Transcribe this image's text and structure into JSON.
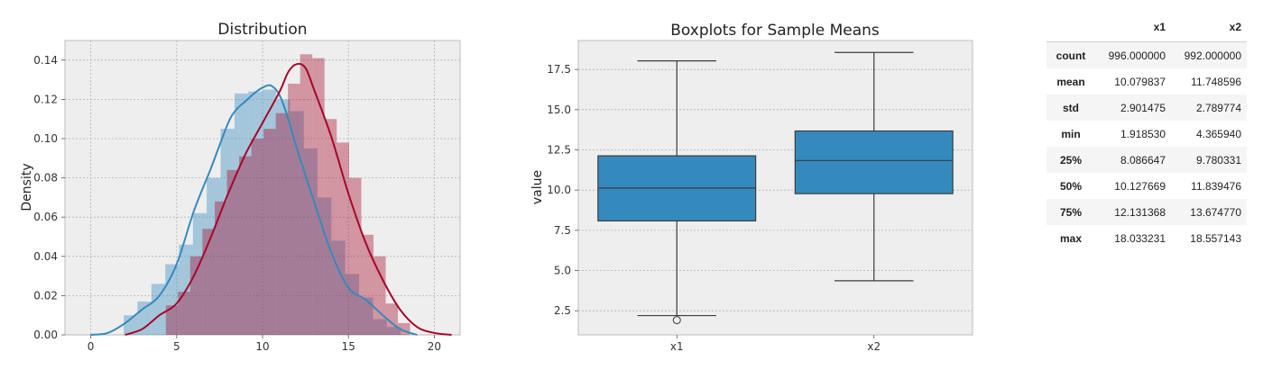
{
  "chart_data": [
    {
      "type": "histogram",
      "title": "Distribution",
      "xlabel": "",
      "ylabel": "Density",
      "xlim": [
        -1.5,
        21.5
      ],
      "ylim": [
        0,
        0.15
      ],
      "xticks": [
        0,
        5,
        10,
        15,
        20
      ],
      "yticks": [
        0.0,
        0.02,
        0.04,
        0.06,
        0.08,
        0.1,
        0.12,
        0.14
      ],
      "ytick_labels": [
        "0.00",
        "0.02",
        "0.04",
        "0.06",
        "0.08",
        "0.10",
        "0.12",
        "0.14"
      ],
      "grid": true,
      "series": [
        {
          "color": "#348abd",
          "bin_edges": [
            1.92,
            2.72,
            3.53,
            4.34,
            5.14,
            5.95,
            6.75,
            7.56,
            8.37,
            9.17,
            9.98,
            10.78,
            11.59,
            12.4,
            13.2,
            14.01,
            14.81,
            15.62,
            16.43,
            17.23,
            18.04
          ],
          "density": [
            0.01,
            0.017,
            0.026,
            0.036,
            0.046,
            0.062,
            0.08,
            0.105,
            0.123,
            0.124,
            0.125,
            0.12,
            0.114,
            0.095,
            0.07,
            0.048,
            0.031,
            0.019,
            0.008,
            0.004
          ],
          "kde_x": [
            0.0,
            1.0,
            2.0,
            3.0,
            4.0,
            5.0,
            6.0,
            7.0,
            8.0,
            8.5,
            9.0,
            9.5,
            10.0,
            10.5,
            11.0,
            11.5,
            12.0,
            13.0,
            14.0,
            15.0,
            16.0,
            17.0,
            18.0,
            19.0
          ],
          "kde_y": [
            0.0,
            0.001,
            0.006,
            0.013,
            0.02,
            0.036,
            0.063,
            0.085,
            0.108,
            0.115,
            0.119,
            0.123,
            0.126,
            0.127,
            0.122,
            0.11,
            0.095,
            0.068,
            0.042,
            0.024,
            0.018,
            0.01,
            0.003,
            0.0
          ]
        },
        {
          "color": "#a60628",
          "bin_edges": [
            4.37,
            5.08,
            5.79,
            6.5,
            7.22,
            7.93,
            8.64,
            9.35,
            10.06,
            10.77,
            11.48,
            12.19,
            12.9,
            13.61,
            14.32,
            15.04,
            15.75,
            16.46,
            17.17,
            17.88,
            18.59
          ],
          "density": [
            0.015,
            0.022,
            0.04,
            0.054,
            0.068,
            0.084,
            0.091,
            0.1,
            0.105,
            0.113,
            0.128,
            0.143,
            0.141,
            0.11,
            0.098,
            0.08,
            0.051,
            0.04,
            0.016,
            0.006
          ],
          "kde_x": [
            2.0,
            3.0,
            4.0,
            5.0,
            6.0,
            7.0,
            8.0,
            9.0,
            10.0,
            11.0,
            11.5,
            12.0,
            12.5,
            13.0,
            14.0,
            15.0,
            16.0,
            17.0,
            18.0,
            19.0,
            20.0,
            21.0
          ],
          "kde_y": [
            0.0,
            0.003,
            0.01,
            0.016,
            0.03,
            0.05,
            0.072,
            0.092,
            0.108,
            0.124,
            0.134,
            0.138,
            0.136,
            0.125,
            0.101,
            0.072,
            0.047,
            0.028,
            0.013,
            0.004,
            0.001,
            0.0
          ]
        }
      ]
    },
    {
      "type": "box",
      "title": "Boxplots for Sample Means",
      "xlabel": "",
      "ylabel": "value",
      "categories": [
        "x1",
        "x2"
      ],
      "ylim": [
        1.0,
        19.3
      ],
      "yticks": [
        2.5,
        5.0,
        7.5,
        10.0,
        12.5,
        15.0,
        17.5
      ],
      "ytick_labels": [
        "2.5",
        "5.0",
        "7.5",
        "10.0",
        "12.5",
        "15.0",
        "17.5"
      ],
      "grid": true,
      "color": "#348abd",
      "boxes": [
        {
          "whisker_low": 2.2,
          "q1": 8.086647,
          "median": 10.127669,
          "q3": 12.131368,
          "whisker_high": 18.033231,
          "outliers": [
            1.91853
          ]
        },
        {
          "whisker_low": 4.36594,
          "q1": 9.780331,
          "median": 11.839476,
          "q3": 13.67477,
          "whisker_high": 18.557143,
          "outliers": []
        }
      ]
    }
  ],
  "stats_table": {
    "columns": [
      "x1",
      "x2"
    ],
    "rows": [
      {
        "label": "count",
        "values": [
          "996.000000",
          "992.000000"
        ]
      },
      {
        "label": "mean",
        "values": [
          "10.079837",
          "11.748596"
        ]
      },
      {
        "label": "std",
        "values": [
          "2.901475",
          "2.789774"
        ]
      },
      {
        "label": "min",
        "values": [
          "1.918530",
          "4.365940"
        ]
      },
      {
        "label": "25%",
        "values": [
          "8.086647",
          "9.780331"
        ]
      },
      {
        "label": "50%",
        "values": [
          "10.127669",
          "11.839476"
        ]
      },
      {
        "label": "75%",
        "values": [
          "12.131368",
          "13.674770"
        ]
      },
      {
        "label": "max",
        "values": [
          "18.033231",
          "18.557143"
        ]
      }
    ]
  }
}
